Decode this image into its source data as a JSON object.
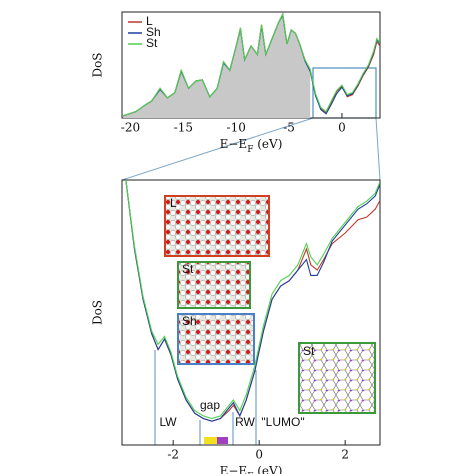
{
  "chart_data": [
    {
      "type": "line",
      "ylabel": "DoS",
      "xlabel": "E−E",
      "xlabel_sub": "F",
      "xlabel_unit": " (eV)",
      "xlim": [
        -20.8,
        3.6
      ],
      "xticks": [
        -20,
        -15,
        -10,
        -5,
        0
      ],
      "ylim": [
        0,
        10
      ],
      "legend": "top-left",
      "x": [
        -20.7,
        -19.5,
        -18.5,
        -18,
        -17.2,
        -16.5,
        -15.8,
        -15.2,
        -14.5,
        -13.8,
        -13.2,
        -12.5,
        -11.8,
        -11.2,
        -10.6,
        -10,
        -9.6,
        -9.2,
        -8.6,
        -8,
        -7.6,
        -7.2,
        -6.6,
        -6,
        -5.6,
        -5.2,
        -4.8,
        -4.4,
        -4,
        -3.5,
        -3,
        -2.5,
        -2,
        -1.5,
        -1,
        -0.5,
        0,
        0.5,
        1,
        1.5,
        2,
        2.5,
        3,
        3.3,
        3.6
      ],
      "series": [
        {
          "name": "L",
          "color": "#c0392b",
          "values": [
            0.2,
            0.6,
            1.3,
            1.6,
            2.8,
            1.9,
            2.4,
            4.5,
            2.8,
            3.5,
            3.6,
            2.0,
            2.8,
            5.3,
            4.5,
            6.8,
            8.5,
            5.5,
            6.8,
            6.0,
            8.8,
            6.0,
            7.5,
            9.0,
            9.8,
            7.0,
            8.3,
            8.0,
            7.0,
            5.5,
            4.5,
            2.2,
            0.9,
            0.5,
            1.5,
            2.5,
            3.0,
            2.0,
            2.2,
            3.0,
            4.0,
            4.8,
            6.0,
            7.2,
            6.8
          ]
        },
        {
          "name": "Sh",
          "color": "#1f3f9f",
          "values": [
            0.2,
            0.6,
            1.3,
            1.6,
            2.7,
            1.9,
            2.4,
            4.4,
            2.8,
            3.5,
            3.6,
            2.0,
            2.8,
            5.2,
            4.5,
            6.8,
            8.4,
            5.5,
            6.8,
            6.0,
            8.7,
            6.0,
            7.5,
            9.0,
            9.7,
            7.0,
            8.3,
            8.0,
            7.0,
            5.4,
            4.4,
            2.1,
            0.8,
            0.4,
            1.3,
            2.3,
            2.9,
            2.1,
            2.3,
            3.1,
            4.1,
            4.9,
            6.2,
            7.4,
            7.0
          ]
        },
        {
          "name": "St",
          "color": "#4fd14f",
          "values": [
            0.2,
            0.6,
            1.3,
            1.6,
            2.8,
            1.9,
            2.4,
            4.5,
            2.8,
            3.5,
            3.6,
            2.0,
            2.8,
            5.3,
            4.5,
            6.8,
            8.5,
            5.5,
            6.8,
            6.0,
            8.8,
            6.0,
            7.5,
            9.0,
            9.8,
            7.0,
            8.3,
            8.0,
            7.0,
            5.5,
            4.6,
            2.3,
            1.0,
            0.6,
            1.6,
            2.6,
            3.1,
            2.2,
            2.4,
            3.2,
            4.2,
            5.0,
            6.3,
            7.5,
            7.1
          ]
        }
      ]
    },
    {
      "type": "line",
      "ylabel": "DoS",
      "xlabel": "E−E",
      "xlabel_sub": "F",
      "xlabel_unit": " (eV)",
      "xlim": [
        -3.19,
        2.81
      ],
      "xticks": [
        -2,
        0,
        2
      ],
      "ylim": [
        0,
        10
      ],
      "annotations": [
        "LW",
        "gap",
        "RW",
        "\"LUMO\""
      ],
      "insets": [
        "L",
        "St",
        "Sh",
        "St"
      ],
      "x": [
        -3.1,
        -2.9,
        -2.7,
        -2.5,
        -2.35,
        -2.2,
        -2.05,
        -1.9,
        -1.7,
        -1.5,
        -1.3,
        -1.1,
        -0.9,
        -0.7,
        -0.6,
        -0.45,
        -0.3,
        -0.1,
        0.1,
        0.3,
        0.5,
        0.7,
        0.9,
        1.1,
        1.2,
        1.35,
        1.5,
        1.7,
        2.0,
        2.3,
        2.5,
        2.7,
        2.8
      ],
      "series": [
        {
          "name": "L",
          "color": "#c0392b",
          "values": [
            10,
            7.4,
            5.5,
            4.2,
            3.6,
            4.0,
            3.4,
            2.5,
            1.7,
            1.2,
            1.0,
            0.9,
            1.0,
            1.3,
            1.5,
            1.1,
            1.7,
            2.8,
            4.3,
            5.5,
            6.0,
            6.2,
            6.6,
            7.4,
            6.8,
            6.6,
            7.0,
            7.6,
            8.0,
            8.5,
            8.6,
            8.9,
            9.2
          ]
        },
        {
          "name": "Sh",
          "color": "#1f3f9f",
          "values": [
            10,
            7.4,
            5.5,
            4.2,
            3.6,
            4.0,
            3.4,
            2.5,
            1.7,
            1.2,
            1.0,
            0.9,
            1.0,
            1.4,
            1.6,
            1.1,
            1.7,
            2.8,
            4.3,
            5.5,
            6.0,
            6.2,
            6.6,
            7.0,
            6.4,
            6.4,
            6.9,
            7.7,
            8.3,
            8.9,
            9.1,
            9.4,
            9.8
          ]
        },
        {
          "name": "St",
          "color": "#4fd14f",
          "values": [
            10,
            7.5,
            5.6,
            4.3,
            3.8,
            4.1,
            3.5,
            2.6,
            1.8,
            1.3,
            1.1,
            1.0,
            1.1,
            1.5,
            1.7,
            1.3,
            1.9,
            3.0,
            4.5,
            5.7,
            6.2,
            6.4,
            6.8,
            7.6,
            7.1,
            6.8,
            7.2,
            7.8,
            8.4,
            9.0,
            9.2,
            9.5,
            9.9
          ]
        }
      ]
    }
  ]
}
